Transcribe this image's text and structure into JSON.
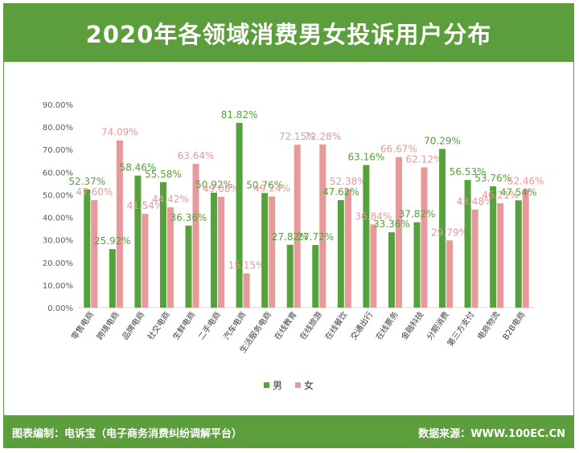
{
  "header": {
    "title": "2020年各领域消费男女投诉用户分布"
  },
  "footer": {
    "credit_label": "图表编制：",
    "credit_value": "电诉宝（电子商务消费纠纷调解平台）",
    "source_label": "数据来源：",
    "source_value": "WWW.100EC.CN"
  },
  "colors": {
    "male": "#55a13b",
    "female": "#e8999a",
    "header": "#5c9e3b"
  },
  "chart_data": {
    "type": "bar",
    "title": "2020年各领域消费男女投诉用户分布",
    "categories": [
      "零售电商",
      "跨境电商",
      "品牌电商",
      "社交电商",
      "生鲜电商",
      "二手电商",
      "汽车电商",
      "生活服务电商",
      "在线教育",
      "在线旅游",
      "在线餐饮",
      "交通出行",
      "在线票务",
      "金融科技",
      "分期消费",
      "第三方支付",
      "电商物流",
      "B2B电商"
    ],
    "series": [
      {
        "name": "男",
        "values": [
          52.37,
          25.92,
          58.46,
          55.58,
          36.36,
          50.92,
          81.82,
          50.76,
          27.82,
          27.72,
          47.62,
          63.16,
          33.36,
          37.82,
          70.29,
          56.53,
          53.76,
          47.54
        ]
      },
      {
        "name": "女",
        "values": [
          47.6,
          74.09,
          41.54,
          44.42,
          63.64,
          49.08,
          15.15,
          49.24,
          72.15,
          72.28,
          52.38,
          36.84,
          66.67,
          62.12,
          29.79,
          43.48,
          46.21,
          52.46
        ]
      }
    ],
    "labels_male": [
      "52.37%",
      "25.92%",
      "58.46%",
      "55.58%",
      "36.36%",
      "50.92%",
      "81.82%",
      "50.76%",
      "27.82%",
      "27.72%",
      "47.62%",
      "63.16%",
      "33.36%",
      "37.82%",
      "70.29%",
      "56.53%",
      "53.76%",
      "47.54%"
    ],
    "labels_female": [
      "47.60%",
      "74.09%",
      "41.54%",
      "44.42%",
      "63.64%",
      "49.08%",
      "15.15%",
      "49.24%",
      "72.15%",
      "72.28%",
      "52.38%",
      "36.84%",
      "66.67%",
      "62.12%",
      "29.79%",
      "43.48%",
      "46.21%",
      "52.46%"
    ],
    "ylim": [
      0,
      90
    ],
    "yticks": [
      "0.00%",
      "10.00%",
      "20.00%",
      "30.00%",
      "40.00%",
      "50.00%",
      "60.00%",
      "70.00%",
      "80.00%",
      "90.00%"
    ],
    "legend": [
      "男",
      "女"
    ],
    "legend_position": "bottom",
    "grid": false
  }
}
